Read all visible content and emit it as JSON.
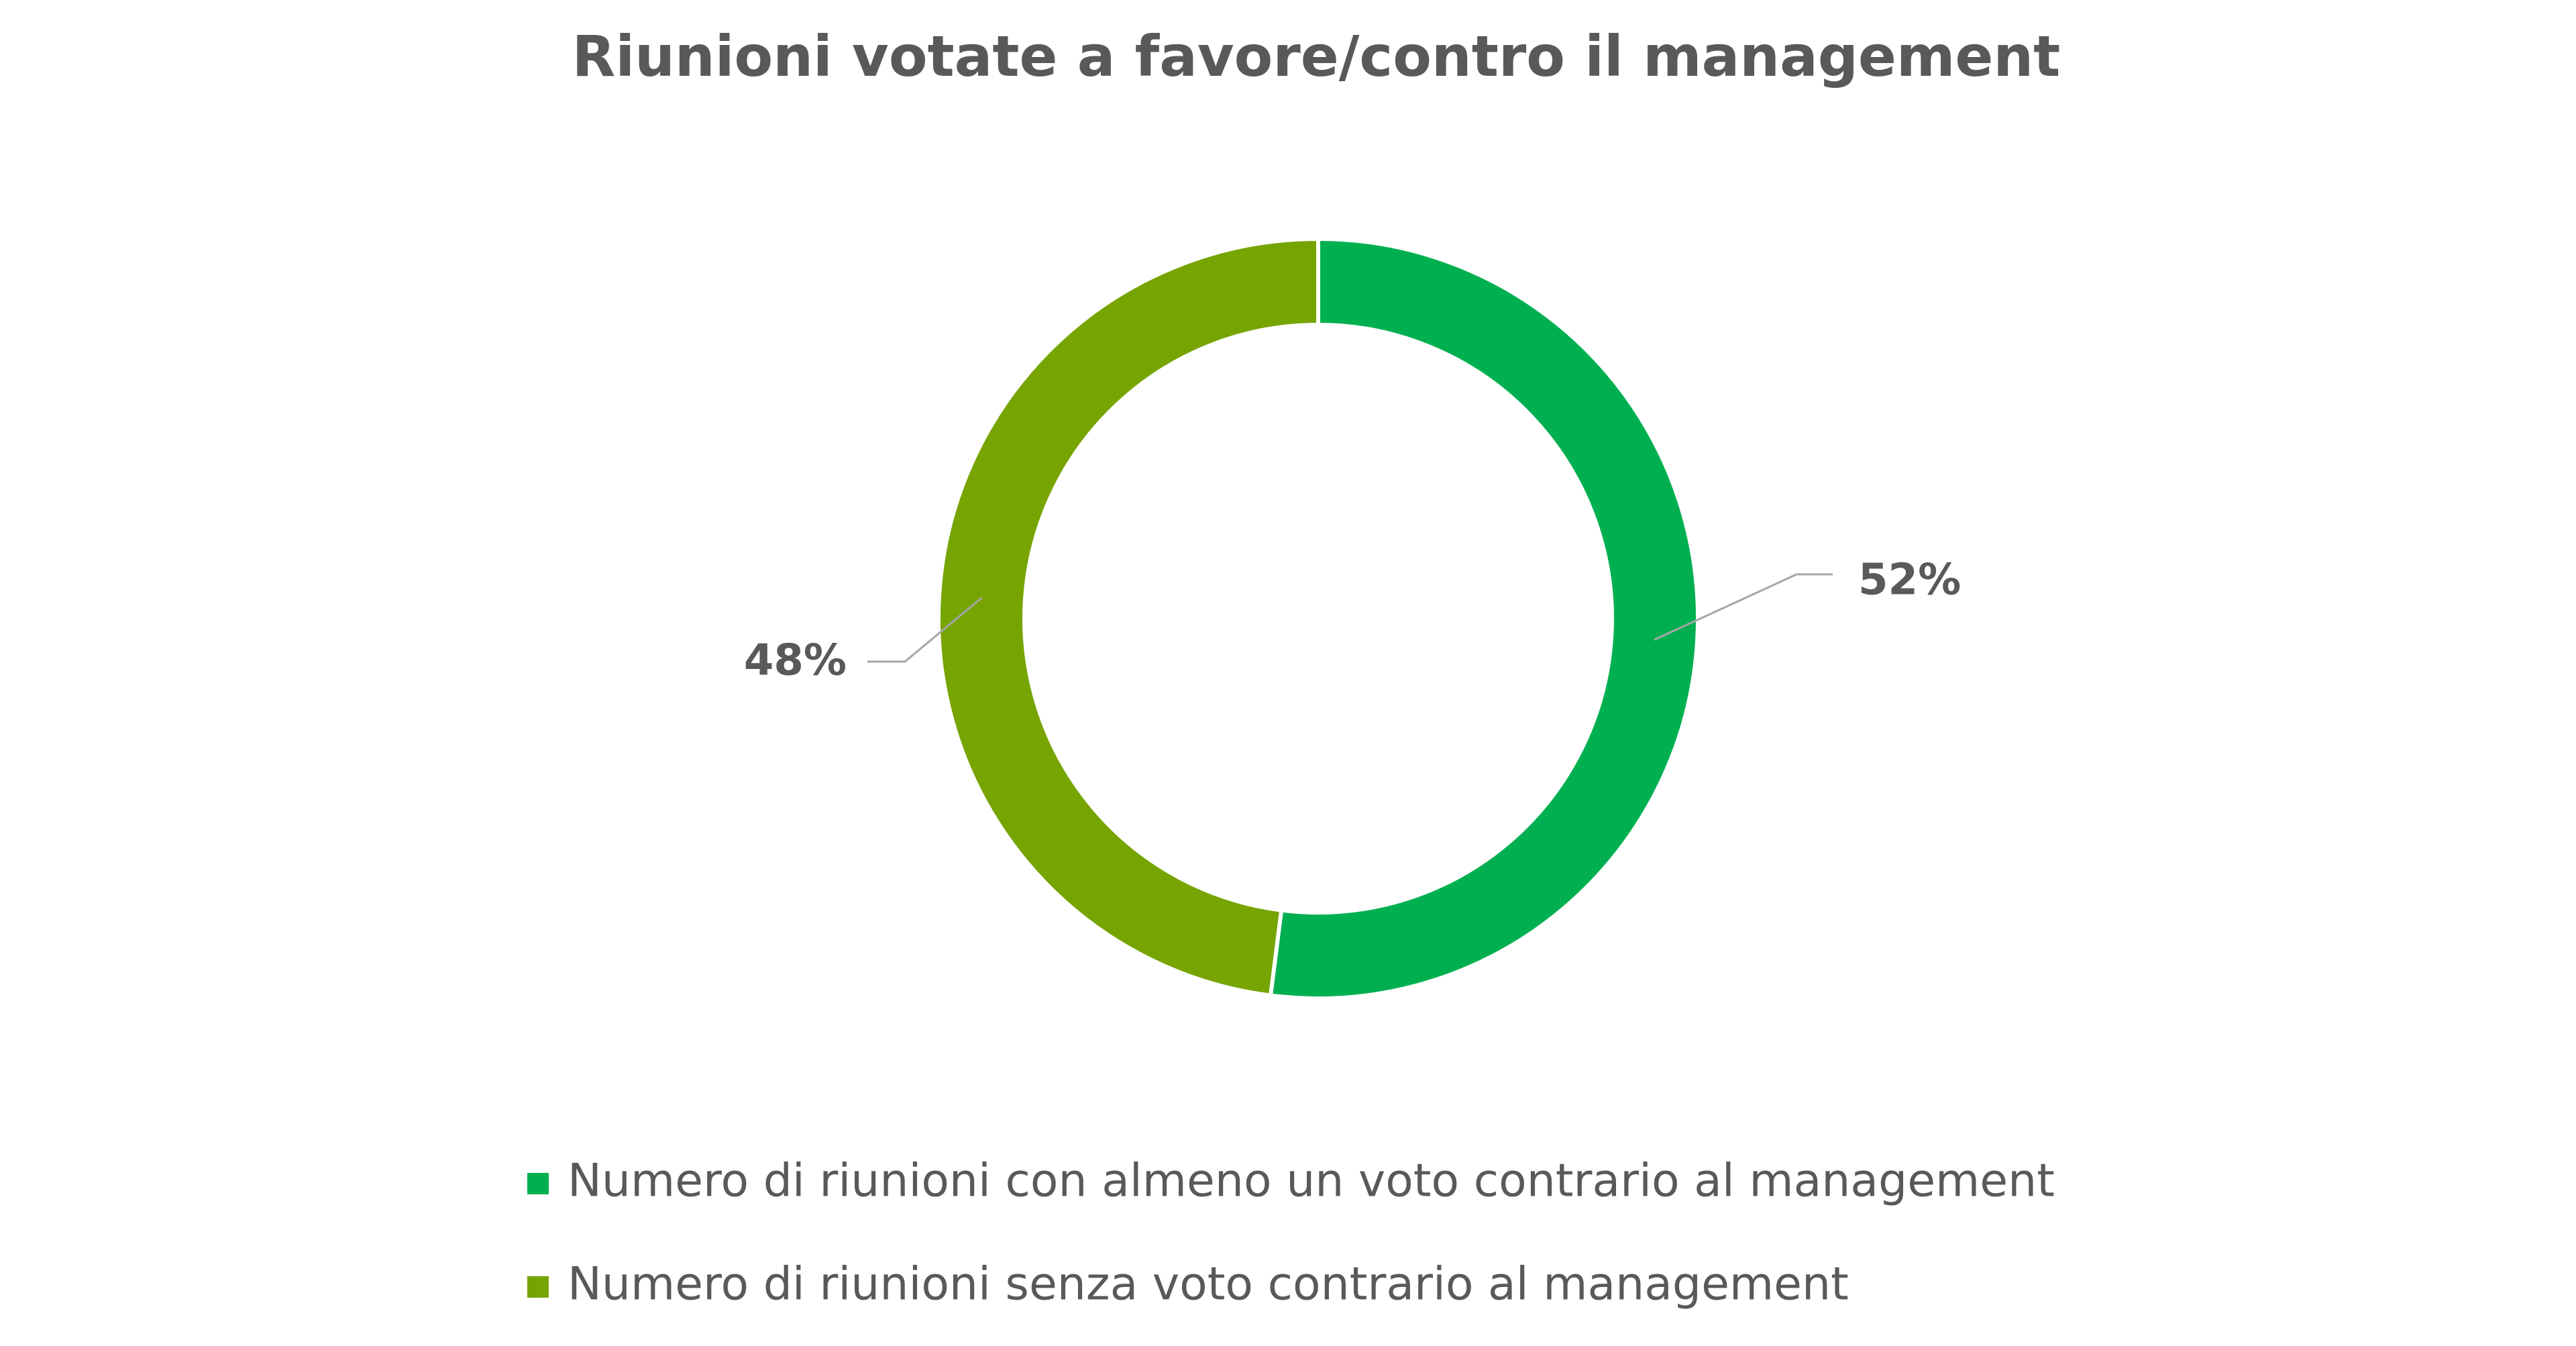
{
  "chart_data": {
    "type": "donut",
    "title": "Riunioni votate a favore/contro il management",
    "series": [
      {
        "name": "Numero di riunioni con almeno un voto contrario al management",
        "color": "#00b050",
        "value": 52,
        "value_label": "52%"
      },
      {
        "name": "Numero di riunioni senza voto contrario al management",
        "color": "#76a400",
        "value": 48,
        "value_label": "48%"
      }
    ],
    "legend": "bottom"
  }
}
